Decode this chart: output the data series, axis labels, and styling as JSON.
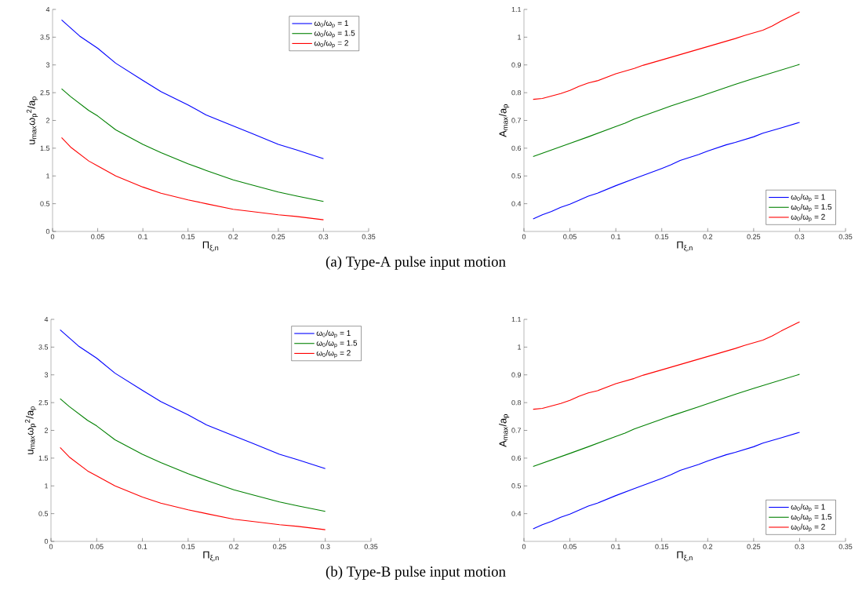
{
  "chart_data": [
    {
      "type": "line",
      "xlabel": "Π$_{ξ,n}$",
      "ylabel": "u$_{max}$ω$_{p}$$^{2}$/a$_{p}$",
      "xlim": [
        0,
        0.35
      ],
      "ylim": [
        0,
        4
      ],
      "xticks": [
        0,
        0.05,
        0.1,
        0.15,
        0.2,
        0.25,
        0.3,
        0.35
      ],
      "yticks": [
        0,
        0.5,
        1,
        1.5,
        2,
        2.5,
        3,
        3.5,
        4
      ],
      "legend": "top right",
      "annotations": [
        "(a) Type-A pulse input motion"
      ],
      "series": [
        {
          "name": "ω$_{0}$/ω$_{p}$ = 1",
          "color": "#0000ff",
          "x": [
            0.01,
            0.03,
            0.05,
            0.07,
            0.1,
            0.12,
            0.15,
            0.17,
            0.2,
            0.22,
            0.25,
            0.27,
            0.3
          ],
          "values": [
            3.81,
            3.52,
            3.3,
            3.03,
            2.72,
            2.52,
            2.28,
            2.1,
            1.9,
            1.77,
            1.57,
            1.47,
            1.31
          ]
        },
        {
          "name": "ω$_{0}$/ω$_{p}$ = 1.5",
          "color": "#008000",
          "x": [
            0.01,
            0.02,
            0.04,
            0.05,
            0.07,
            0.1,
            0.12,
            0.15,
            0.17,
            0.2,
            0.22,
            0.25,
            0.27,
            0.3
          ],
          "values": [
            2.57,
            2.43,
            2.18,
            2.08,
            1.83,
            1.57,
            1.42,
            1.22,
            1.1,
            0.93,
            0.84,
            0.71,
            0.64,
            0.54
          ]
        },
        {
          "name": "ω$_{0}$/ω$_{p}$ = 2",
          "color": "#ff0000",
          "x": [
            0.01,
            0.02,
            0.04,
            0.05,
            0.07,
            0.1,
            0.12,
            0.15,
            0.17,
            0.2,
            0.22,
            0.25,
            0.27,
            0.3
          ],
          "values": [
            1.69,
            1.52,
            1.27,
            1.18,
            1.0,
            0.8,
            0.69,
            0.57,
            0.5,
            0.4,
            0.36,
            0.3,
            0.27,
            0.21
          ]
        }
      ]
    },
    {
      "type": "line",
      "xlabel": "Π$_{ξ,n}$",
      "ylabel": "A$_{max}$/a$_{p}$",
      "xlim": [
        0,
        0.35
      ],
      "ylim": [
        0.3,
        1.1
      ],
      "xticks": [
        0,
        0.05,
        0.1,
        0.15,
        0.2,
        0.25,
        0.3,
        0.35
      ],
      "yticks": [
        0.4,
        0.5,
        0.6,
        0.7,
        0.8,
        0.9,
        1,
        1.1
      ],
      "legend": "bottom right",
      "series": [
        {
          "name": "ω$_{0}$/ω$_{p}$ = 1",
          "color": "#0000ff",
          "x": [
            0.01,
            0.02,
            0.03,
            0.04,
            0.05,
            0.07,
            0.08,
            0.1,
            0.12,
            0.15,
            0.16,
            0.17,
            0.19,
            0.2,
            0.22,
            0.23,
            0.25,
            0.26,
            0.28,
            0.3
          ],
          "values": [
            0.345,
            0.36,
            0.372,
            0.387,
            0.398,
            0.427,
            0.438,
            0.465,
            0.49,
            0.527,
            0.54,
            0.556,
            0.577,
            0.59,
            0.612,
            0.621,
            0.641,
            0.654,
            0.673,
            0.693
          ]
        },
        {
          "name": "ω$_{0}$/ω$_{p}$ = 1.5",
          "color": "#008000",
          "x": [
            0.01,
            0.05,
            0.07,
            0.1,
            0.11,
            0.12,
            0.15,
            0.16,
            0.19,
            0.2,
            0.23,
            0.25,
            0.3
          ],
          "values": [
            0.57,
            0.617,
            0.641,
            0.678,
            0.69,
            0.705,
            0.74,
            0.752,
            0.785,
            0.796,
            0.83,
            0.851,
            0.902
          ]
        },
        {
          "name": "ω$_{0}$/ω$_{p}$ = 2",
          "color": "#ff0000",
          "x": [
            0.01,
            0.02,
            0.04,
            0.05,
            0.06,
            0.07,
            0.08,
            0.1,
            0.12,
            0.13,
            0.15,
            0.2,
            0.23,
            0.24,
            0.26,
            0.27,
            0.28,
            0.3
          ],
          "values": [
            0.776,
            0.779,
            0.797,
            0.808,
            0.823,
            0.835,
            0.843,
            0.868,
            0.887,
            0.899,
            0.918,
            0.966,
            0.995,
            1.006,
            1.025,
            1.04,
            1.058,
            1.091
          ]
        }
      ]
    },
    {
      "type": "line",
      "xlabel": "Π$_{ξ,n}$",
      "ylabel": "u$_{max}$ω$_{p}$$^{2}$/a$_{p}$",
      "xlim": [
        0,
        0.35
      ],
      "ylim": [
        0,
        4
      ],
      "xticks": [
        0,
        0.05,
        0.1,
        0.15,
        0.2,
        0.25,
        0.3,
        0.35
      ],
      "yticks": [
        0,
        0.5,
        1,
        1.5,
        2,
        2.5,
        3,
        3.5,
        4
      ],
      "legend": "top right",
      "annotations": [
        "(b) Type-B pulse input motion"
      ],
      "series": [
        {
          "name": "ω$_{0}$/ω$_{p}$ = 1",
          "color": "#0000ff",
          "x": [
            0.01,
            0.03,
            0.05,
            0.07,
            0.1,
            0.12,
            0.15,
            0.17,
            0.2,
            0.22,
            0.25,
            0.27,
            0.3
          ],
          "values": [
            3.81,
            3.52,
            3.3,
            3.03,
            2.72,
            2.52,
            2.28,
            2.1,
            1.9,
            1.77,
            1.57,
            1.47,
            1.31
          ]
        },
        {
          "name": "ω$_{0}$/ω$_{p}$ = 1.5",
          "color": "#008000",
          "x": [
            0.01,
            0.02,
            0.04,
            0.05,
            0.07,
            0.1,
            0.12,
            0.15,
            0.17,
            0.2,
            0.22,
            0.25,
            0.27,
            0.3
          ],
          "values": [
            2.57,
            2.43,
            2.18,
            2.08,
            1.83,
            1.57,
            1.42,
            1.22,
            1.1,
            0.93,
            0.84,
            0.71,
            0.64,
            0.54
          ]
        },
        {
          "name": "ω$_{0}$/ω$_{p}$ = 2",
          "color": "#ff0000",
          "x": [
            0.01,
            0.02,
            0.04,
            0.05,
            0.07,
            0.1,
            0.12,
            0.15,
            0.17,
            0.2,
            0.22,
            0.25,
            0.27,
            0.3
          ],
          "values": [
            1.69,
            1.52,
            1.27,
            1.18,
            1.0,
            0.8,
            0.69,
            0.57,
            0.5,
            0.4,
            0.36,
            0.3,
            0.27,
            0.21
          ]
        }
      ]
    },
    {
      "type": "line",
      "xlabel": "Π$_{ξ,n}$",
      "ylabel": "A$_{max}$/a$_{p}$",
      "xlim": [
        0,
        0.35
      ],
      "ylim": [
        0.3,
        1.1
      ],
      "xticks": [
        0,
        0.05,
        0.1,
        0.15,
        0.2,
        0.25,
        0.3,
        0.35
      ],
      "yticks": [
        0.4,
        0.5,
        0.6,
        0.7,
        0.8,
        0.9,
        1,
        1.1
      ],
      "legend": "bottom right",
      "series": [
        {
          "name": "ω$_{0}$/ω$_{p}$ = 1",
          "color": "#0000ff",
          "x": [
            0.01,
            0.02,
            0.03,
            0.04,
            0.05,
            0.07,
            0.08,
            0.1,
            0.12,
            0.15,
            0.16,
            0.17,
            0.19,
            0.2,
            0.22,
            0.23,
            0.25,
            0.26,
            0.28,
            0.3
          ],
          "values": [
            0.345,
            0.36,
            0.372,
            0.387,
            0.398,
            0.427,
            0.438,
            0.465,
            0.49,
            0.527,
            0.54,
            0.556,
            0.577,
            0.59,
            0.612,
            0.621,
            0.641,
            0.654,
            0.673,
            0.693
          ]
        },
        {
          "name": "ω$_{0}$/ω$_{p}$ = 1.5",
          "color": "#008000",
          "x": [
            0.01,
            0.05,
            0.07,
            0.1,
            0.11,
            0.12,
            0.15,
            0.16,
            0.19,
            0.2,
            0.23,
            0.25,
            0.3
          ],
          "values": [
            0.57,
            0.617,
            0.641,
            0.678,
            0.69,
            0.705,
            0.74,
            0.752,
            0.785,
            0.796,
            0.83,
            0.851,
            0.902
          ]
        },
        {
          "name": "ω$_{0}$/ω$_{p}$ = 2",
          "color": "#ff0000",
          "x": [
            0.01,
            0.02,
            0.04,
            0.05,
            0.06,
            0.07,
            0.08,
            0.1,
            0.12,
            0.13,
            0.15,
            0.2,
            0.23,
            0.24,
            0.26,
            0.27,
            0.28,
            0.3
          ],
          "values": [
            0.776,
            0.779,
            0.797,
            0.808,
            0.823,
            0.835,
            0.843,
            0.868,
            0.887,
            0.899,
            0.918,
            0.966,
            0.995,
            1.006,
            1.025,
            1.04,
            1.058,
            1.091
          ]
        }
      ]
    }
  ]
}
